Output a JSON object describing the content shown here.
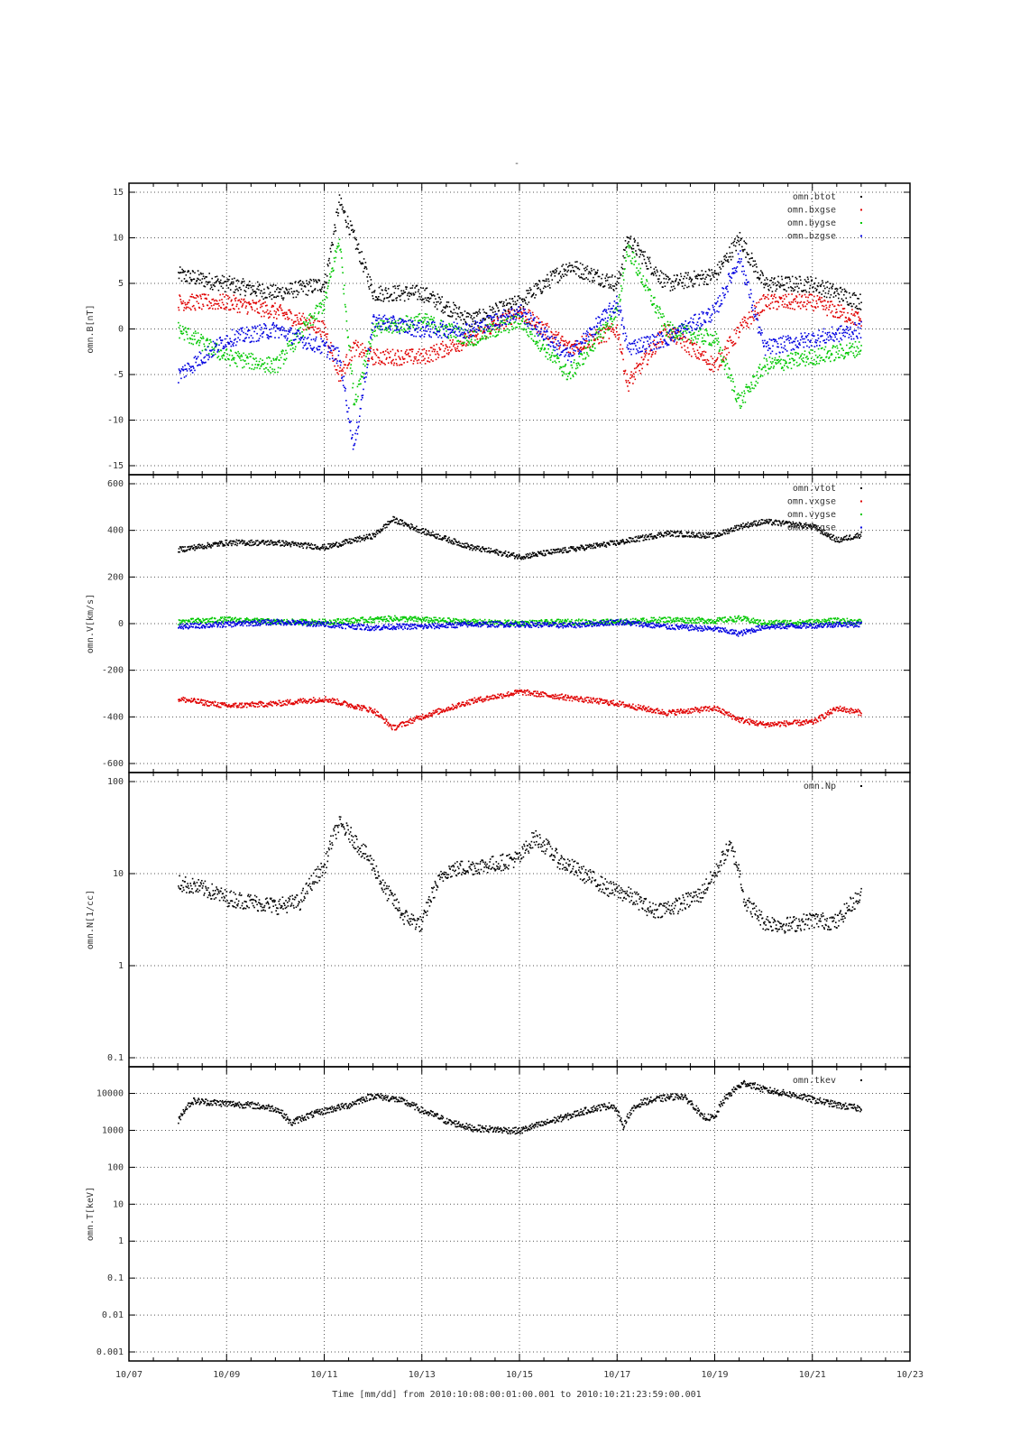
{
  "figure": {
    "top_title": "-",
    "xlabel": "Time [mm/dd]  from 2010:10:08:00:01:00.001  to  2010:10:21:23:59:00.001",
    "x_ticks": [
      "10/07",
      "10/09",
      "10/11",
      "10/13",
      "10/15",
      "10/17",
      "10/19",
      "10/21",
      "10/23"
    ]
  },
  "chart_data": [
    {
      "type": "scatter",
      "ylabel": "omn.B[nT]",
      "x_axis": "date (days, Oct 2010)",
      "xlim": [
        "2010-10-07",
        "2010-10-23"
      ],
      "ylim": [
        -15,
        15
      ],
      "yscale": "linear",
      "y_ticks": [
        "15",
        "10",
        "5",
        "0",
        "-5",
        "-10",
        "-15"
      ],
      "grid": true,
      "legend_position": "top-right",
      "x": [
        "10/08",
        "10/09",
        "10/10",
        "10/11",
        "10/11.3",
        "10/11.6",
        "10/12",
        "10/13",
        "10/14",
        "10/15",
        "10/16",
        "10/17",
        "10/17.2",
        "10/18",
        "10/19",
        "10/19.5",
        "10/20",
        "10/21",
        "10/22"
      ],
      "series": [
        {
          "name": "omn.btot",
          "color": "#000000",
          "values": [
            6,
            5,
            4,
            5,
            14,
            10,
            4,
            4,
            1,
            3,
            7,
            5,
            10,
            5,
            6,
            10,
            5,
            5,
            3
          ]
        },
        {
          "name": "omn.bxgse",
          "color": "#e00000",
          "values": [
            3,
            3,
            2,
            0,
            -5,
            -2,
            -3,
            -3,
            -1,
            2,
            -2,
            0,
            -6,
            0,
            -4,
            0,
            3,
            3,
            1
          ]
        },
        {
          "name": "omn.bygse",
          "color": "#00c800",
          "values": [
            0,
            -3,
            -4,
            3,
            10,
            -8,
            0,
            1,
            -1,
            1,
            -5,
            2,
            9,
            0,
            -1,
            -8,
            -4,
            -3,
            -2
          ]
        },
        {
          "name": "omn.bzgse",
          "color": "#0000e0",
          "values": [
            -5,
            -1,
            0,
            -2,
            -3,
            -13,
            1,
            0,
            0,
            2,
            -3,
            3,
            -2,
            -1,
            2,
            8,
            -2,
            -1,
            0
          ]
        }
      ]
    },
    {
      "type": "scatter",
      "ylabel": "omn.V[km/s]",
      "x_axis": "date (days, Oct 2010)",
      "xlim": [
        "2010-10-07",
        "2010-10-23"
      ],
      "ylim": [
        -600,
        600
      ],
      "yscale": "linear",
      "y_ticks": [
        "600",
        "400",
        "200",
        "0",
        "-200",
        "-400",
        "-600"
      ],
      "grid": true,
      "legend_position": "top-right",
      "x": [
        "10/08",
        "10/09",
        "10/10",
        "10/11",
        "10/12",
        "10/12.4",
        "10/13",
        "10/14",
        "10/15",
        "10/16",
        "10/17",
        "10/18",
        "10/19",
        "10/19.5",
        "10/20",
        "10/21",
        "10/21.5",
        "10/22"
      ],
      "series": [
        {
          "name": "omn.vtot",
          "color": "#000000",
          "values": [
            320,
            350,
            350,
            330,
            380,
            450,
            400,
            330,
            290,
            320,
            350,
            390,
            380,
            420,
            440,
            420,
            360,
            385
          ]
        },
        {
          "name": "omn.vxgse",
          "color": "#e00000",
          "values": [
            -320,
            -350,
            -340,
            -320,
            -370,
            -445,
            -395,
            -330,
            -290,
            -315,
            -340,
            -380,
            -360,
            -410,
            -430,
            -420,
            -360,
            -380
          ]
        },
        {
          "name": "omn.vygse",
          "color": "#00c800",
          "values": [
            10,
            20,
            10,
            10,
            20,
            25,
            20,
            10,
            5,
            10,
            10,
            20,
            15,
            25,
            5,
            10,
            15,
            10
          ]
        },
        {
          "name": "omn.vzgse",
          "color": "#0000e0",
          "values": [
            -10,
            0,
            10,
            0,
            -15,
            -10,
            -10,
            0,
            0,
            -5,
            10,
            -10,
            -20,
            -40,
            -10,
            -5,
            0,
            0
          ]
        }
      ]
    },
    {
      "type": "scatter",
      "ylabel": "omn.N[1/cc]",
      "x_axis": "date (days, Oct 2010)",
      "xlim": [
        "2010-10-07",
        "2010-10-23"
      ],
      "ylim": [
        0.1,
        100
      ],
      "yscale": "log",
      "y_ticks": [
        "100",
        "10",
        "1",
        "0.1"
      ],
      "grid": true,
      "legend_position": "top-right",
      "x": [
        "10/08",
        "10/08.5",
        "10/09",
        "10/09.5",
        "10/10",
        "10/10.5",
        "10/11",
        "10/11.3",
        "10/11.7",
        "10/12.2",
        "10/12.6",
        "10/13",
        "10/13.5",
        "10/14",
        "10/14.5",
        "10/15",
        "10/15.3",
        "10/15.8",
        "10/16.3",
        "10/16.8",
        "10/17.2",
        "10/17.7",
        "10/18.2",
        "10/18.7",
        "10/19",
        "10/19.3",
        "10/19.6",
        "10/20",
        "10/20.5",
        "10/21",
        "10/21.5",
        "10/22"
      ],
      "series": [
        {
          "name": "omn.Np",
          "color": "#000000",
          "values": [
            8,
            7,
            5.5,
            5,
            4.5,
            5,
            12,
            35,
            20,
            7,
            3.5,
            2.8,
            11,
            12,
            13,
            15,
            25,
            14,
            10,
            7,
            6,
            4,
            4.5,
            6,
            10,
            20,
            5,
            3,
            2.8,
            3.2,
            3,
            6
          ]
        }
      ]
    },
    {
      "type": "scatter",
      "ylabel": "omn.T[keV]",
      "x_axis": "date (days, Oct 2010)",
      "xlim": [
        "2010-10-07",
        "2010-10-23"
      ],
      "ylim": [
        0.001,
        30000
      ],
      "yscale": "log",
      "y_ticks": [
        "10000",
        "1000",
        "100",
        "10",
        "1",
        "0.1",
        "0.01",
        "0.001"
      ],
      "grid": true,
      "legend_position": "top-right",
      "x": [
        "10/08",
        "10/08.3",
        "10/09",
        "10/09.5",
        "10/10",
        "10/10.3",
        "10/11",
        "10/11.5",
        "10/12",
        "10/12.5",
        "10/13",
        "10/13.5",
        "10/14",
        "10/14.5",
        "10/15",
        "10/15.5",
        "10/16",
        "10/16.5",
        "10/16.9",
        "10/17.1",
        "10/17.5",
        "10/18",
        "10/18.3",
        "10/18.7",
        "10/19",
        "10/19.3",
        "10/19.6",
        "10/20",
        "10/20.5",
        "10/21",
        "10/21.5",
        "10/22"
      ],
      "series": [
        {
          "name": "omn.tkev",
          "color": "#000000",
          "values": [
            1800,
            6500,
            5500,
            5000,
            4000,
            1600,
            3500,
            5000,
            9000,
            7000,
            3500,
            1800,
            1200,
            1100,
            1000,
            1600,
            2500,
            4000,
            5000,
            1200,
            6000,
            8000,
            9000,
            2500,
            2200,
            10000,
            20000,
            13000,
            10000,
            7000,
            5000,
            4000
          ]
        }
      ]
    }
  ]
}
